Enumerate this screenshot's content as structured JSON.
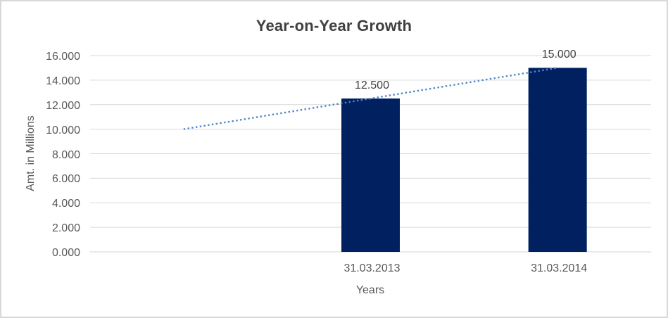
{
  "page": {
    "background_color": "#FFFFFF",
    "frame_border_color": "#D8D8D8"
  },
  "chart_data": {
    "type": "bar",
    "title": "Year-on-Year Growth",
    "xlabel": "Years",
    "ylabel": "Amt. in Millions",
    "categories": [
      "31.03.2013",
      "31.03.2014"
    ],
    "values": [
      12.5,
      15.0
    ],
    "bar_value_labels": [
      "12.500",
      "15.000"
    ],
    "ylim": [
      0,
      16
    ],
    "ytick_step": 2,
    "ytick_labels_top_to_bottom": [
      "16.000",
      "14.000",
      "12.000",
      "10.000",
      "8.000",
      "6.000",
      "4.000",
      "2.000",
      "0.000"
    ],
    "grid": true,
    "legend_position": "none",
    "bar_color": "#002060",
    "gridline_color": "#D9D9D9",
    "axis_line_color": "#D4D4D4",
    "tick_text_color": "#595959",
    "title_color": "#404040",
    "bar_label_color": "#404040",
    "trendline": {
      "style": "dotted",
      "color": "#4E86C8",
      "point_values": [
        10.0,
        12.5,
        15.0
      ],
      "back_periods": 1
    }
  }
}
